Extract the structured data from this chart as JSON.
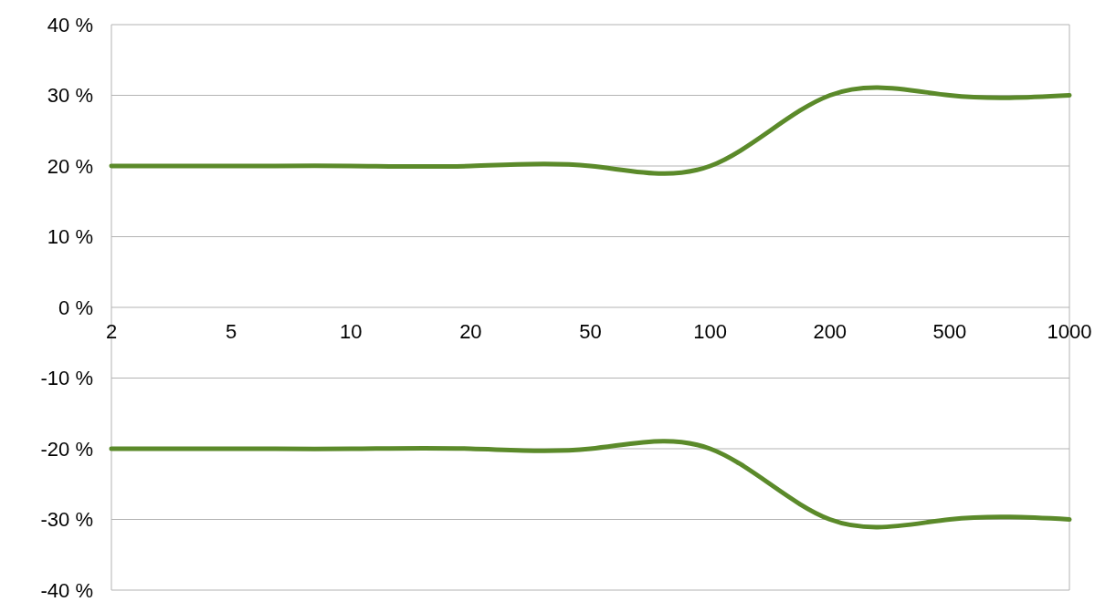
{
  "chart_data": {
    "type": "line",
    "categories": [
      "2",
      "5",
      "10",
      "20",
      "50",
      "100",
      "200",
      "500",
      "1000"
    ],
    "series": [
      {
        "color": "#5b8a2a",
        "values": [
          20,
          20,
          20,
          20,
          20,
          20,
          30,
          30,
          30
        ]
      },
      {
        "color": "#5b8a2a",
        "values": [
          -20,
          -20,
          -20,
          -20,
          -20,
          -20,
          -30,
          -30,
          -30
        ]
      }
    ],
    "ylim": [
      -40,
      40
    ],
    "yticks": [
      {
        "value": -40,
        "label": "-40 %"
      },
      {
        "value": -30,
        "label": "-30 %"
      },
      {
        "value": -20,
        "label": "-20 %"
      },
      {
        "value": -10,
        "label": "-10 %"
      },
      {
        "value": 0,
        "label": "0 %"
      },
      {
        "value": 10,
        "label": "10 %"
      },
      {
        "value": 20,
        "label": "20 %"
      },
      {
        "value": 30,
        "label": "30 %"
      },
      {
        "value": 40,
        "label": "40 %"
      }
    ],
    "grid": "y",
    "marker": "none",
    "line_style": "solid"
  }
}
